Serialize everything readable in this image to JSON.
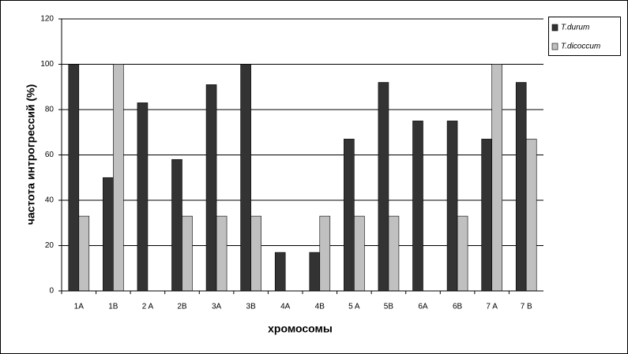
{
  "chart_data": {
    "type": "bar",
    "y_label": "частота интрогрессий (%)",
    "x_label": "хромосомы",
    "categories": [
      "1A",
      "1B",
      "2 A",
      "2B",
      "3A",
      "3B",
      "4A",
      "4B",
      "5 A",
      "5B",
      "6A",
      "6B",
      "7 A",
      "7 B"
    ],
    "series": [
      {
        "name": "T.durum",
        "color": "#333333",
        "values": [
          100,
          50,
          83,
          58,
          91,
          100,
          17,
          17,
          67,
          92,
          75,
          75,
          67,
          92
        ]
      },
      {
        "name": "T.dicoccum",
        "color": "#c0c0c0",
        "values": [
          33,
          100,
          0,
          33,
          33,
          33,
          0,
          33,
          33,
          33,
          0,
          33,
          100,
          67
        ]
      }
    ],
    "ylim": [
      0,
      120
    ],
    "yticks": [
      0,
      20,
      40,
      60,
      80,
      100,
      120
    ],
    "grid": true,
    "legend": "top-right"
  }
}
